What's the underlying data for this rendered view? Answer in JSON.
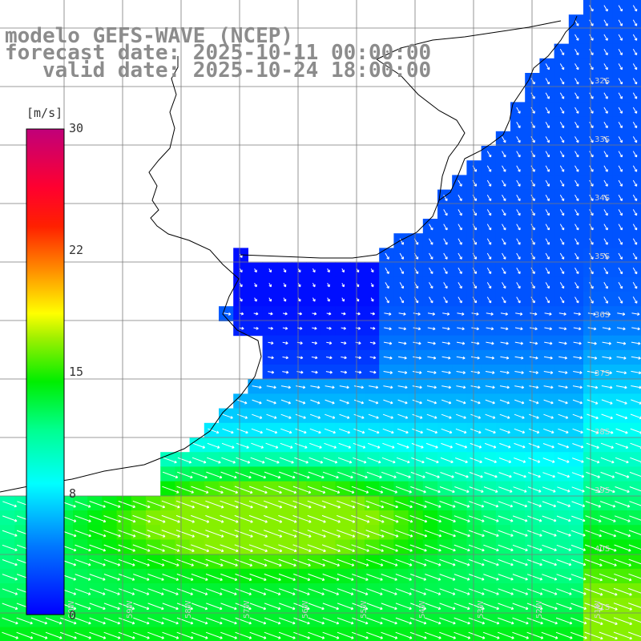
{
  "title": {
    "line1": "modelo GEFS-WAVE (NCEP)",
    "line2": "forecast date: 2025-10-11 00:00:00",
    "line3": "   valid date: 2025-10-24 18:00:00"
  },
  "colorbar": {
    "unit": "[m/s]",
    "ticks": [
      "30",
      "22",
      "15",
      "8",
      "0"
    ],
    "tick_values": [
      30,
      22,
      15,
      8,
      0
    ],
    "range": [
      0,
      30
    ],
    "colors": [
      "#0000ff",
      "#0077ff",
      "#00e0ff",
      "#00ff90",
      "#00ee00",
      "#ffff00",
      "#ff8000",
      "#ff0000",
      "#c0007a"
    ]
  },
  "lat_labels": [
    "32S",
    "33S",
    "34S",
    "35S",
    "36S",
    "37S",
    "38S",
    "39S",
    "40S",
    "41S"
  ],
  "lon_labels": [
    "60W",
    "59W",
    "58W",
    "57W",
    "56W",
    "55W",
    "54W",
    "53W",
    "52W",
    "51W"
  ],
  "colors": {
    "land": "#ffffff",
    "grid": "#7a7a7a",
    "coast": "#000000",
    "arrow": "#ffffff",
    "title": "#8c8c8c"
  }
}
